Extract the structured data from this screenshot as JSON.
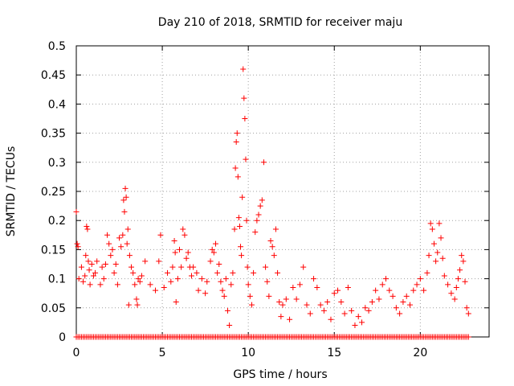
{
  "chart_data": {
    "type": "scatter",
    "title": "Day 210 of 2018, SRMTID for receiver maju",
    "xlabel": "GPS time / hours",
    "ylabel": "SRMTID / TECUs",
    "xlim": [
      0,
      24
    ],
    "ylim": [
      0,
      0.5
    ],
    "xticks": [
      0,
      5,
      10,
      15,
      20
    ],
    "xtick_labels": [
      "0",
      "5",
      "10",
      "15",
      "20"
    ],
    "yticks": [
      0,
      0.05,
      0.1,
      0.15,
      0.2,
      0.25,
      0.3,
      0.35,
      0.4,
      0.45,
      0.5
    ],
    "ytick_labels": [
      "0",
      "0.05",
      "0.1",
      "0.15",
      "0.2",
      "0.25",
      "0.3",
      "0.35",
      "0.4",
      "0.45",
      "0.5"
    ],
    "grid": true,
    "marker": "+",
    "color": "#ff0000",
    "series": [
      {
        "name": "SRMTID",
        "points": [
          [
            0.0,
            0.215
          ],
          [
            0.05,
            0.16
          ],
          [
            0.1,
            0.155
          ],
          [
            0.15,
            0.1
          ],
          [
            0.3,
            0.12
          ],
          [
            0.4,
            0.095
          ],
          [
            0.5,
            0.105
          ],
          [
            0.55,
            0.14
          ],
          [
            0.6,
            0.19
          ],
          [
            0.65,
            0.185
          ],
          [
            0.7,
            0.13
          ],
          [
            0.75,
            0.115
          ],
          [
            0.8,
            0.09
          ],
          [
            0.9,
            0.125
          ],
          [
            1.0,
            0.105
          ],
          [
            1.1,
            0.11
          ],
          [
            1.2,
            0.13
          ],
          [
            1.4,
            0.09
          ],
          [
            1.5,
            0.12
          ],
          [
            1.6,
            0.1
          ],
          [
            1.7,
            0.125
          ],
          [
            1.8,
            0.175
          ],
          [
            1.9,
            0.16
          ],
          [
            2.0,
            0.14
          ],
          [
            2.1,
            0.15
          ],
          [
            2.2,
            0.11
          ],
          [
            2.3,
            0.125
          ],
          [
            2.4,
            0.09
          ],
          [
            2.5,
            0.17
          ],
          [
            2.6,
            0.155
          ],
          [
            2.7,
            0.175
          ],
          [
            2.75,
            0.235
          ],
          [
            2.8,
            0.215
          ],
          [
            2.85,
            0.255
          ],
          [
            2.9,
            0.24
          ],
          [
            2.95,
            0.16
          ],
          [
            3.0,
            0.185
          ],
          [
            3.05,
            0.055
          ],
          [
            3.1,
            0.14
          ],
          [
            3.2,
            0.12
          ],
          [
            3.3,
            0.11
          ],
          [
            3.4,
            0.09
          ],
          [
            3.5,
            0.065
          ],
          [
            3.55,
            0.055
          ],
          [
            3.6,
            0.1
          ],
          [
            3.7,
            0.095
          ],
          [
            3.8,
            0.105
          ],
          [
            4.0,
            0.13
          ],
          [
            4.3,
            0.09
          ],
          [
            4.6,
            0.08
          ],
          [
            4.8,
            0.13
          ],
          [
            4.9,
            0.175
          ],
          [
            5.1,
            0.085
          ],
          [
            5.3,
            0.11
          ],
          [
            5.5,
            0.095
          ],
          [
            5.6,
            0.12
          ],
          [
            5.7,
            0.165
          ],
          [
            5.75,
            0.145
          ],
          [
            5.8,
            0.06
          ],
          [
            5.9,
            0.1
          ],
          [
            6.0,
            0.15
          ],
          [
            6.1,
            0.12
          ],
          [
            6.2,
            0.185
          ],
          [
            6.3,
            0.175
          ],
          [
            6.4,
            0.135
          ],
          [
            6.5,
            0.145
          ],
          [
            6.6,
            0.12
          ],
          [
            6.7,
            0.105
          ],
          [
            6.8,
            0.12
          ],
          [
            7.0,
            0.11
          ],
          [
            7.1,
            0.08
          ],
          [
            7.3,
            0.1
          ],
          [
            7.5,
            0.075
          ],
          [
            7.6,
            0.095
          ],
          [
            7.8,
            0.13
          ],
          [
            7.9,
            0.15
          ],
          [
            8.0,
            0.145
          ],
          [
            8.1,
            0.16
          ],
          [
            8.2,
            0.11
          ],
          [
            8.3,
            0.125
          ],
          [
            8.4,
            0.095
          ],
          [
            8.5,
            0.08
          ],
          [
            8.6,
            0.07
          ],
          [
            8.7,
            0.1
          ],
          [
            8.8,
            0.045
          ],
          [
            8.9,
            0.02
          ],
          [
            9.0,
            0.09
          ],
          [
            9.1,
            0.11
          ],
          [
            9.2,
            0.185
          ],
          [
            9.25,
            0.29
          ],
          [
            9.3,
            0.335
          ],
          [
            9.35,
            0.35
          ],
          [
            9.4,
            0.275
          ],
          [
            9.45,
            0.205
          ],
          [
            9.5,
            0.19
          ],
          [
            9.55,
            0.155
          ],
          [
            9.6,
            0.14
          ],
          [
            9.65,
            0.24
          ],
          [
            9.7,
            0.46
          ],
          [
            9.75,
            0.41
          ],
          [
            9.8,
            0.375
          ],
          [
            9.85,
            0.305
          ],
          [
            9.9,
            0.2
          ],
          [
            9.95,
            0.12
          ],
          [
            10.0,
            0.09
          ],
          [
            10.1,
            0.07
          ],
          [
            10.2,
            0.055
          ],
          [
            10.3,
            0.11
          ],
          [
            10.4,
            0.18
          ],
          [
            10.5,
            0.2
          ],
          [
            10.6,
            0.21
          ],
          [
            10.7,
            0.225
          ],
          [
            10.8,
            0.235
          ],
          [
            10.9,
            0.3
          ],
          [
            11.0,
            0.12
          ],
          [
            11.1,
            0.095
          ],
          [
            11.2,
            0.07
          ],
          [
            11.3,
            0.165
          ],
          [
            11.4,
            0.155
          ],
          [
            11.5,
            0.14
          ],
          [
            11.6,
            0.185
          ],
          [
            11.7,
            0.11
          ],
          [
            11.8,
            0.06
          ],
          [
            11.9,
            0.035
          ],
          [
            12.0,
            0.055
          ],
          [
            12.2,
            0.065
          ],
          [
            12.4,
            0.03
          ],
          [
            12.6,
            0.085
          ],
          [
            12.8,
            0.065
          ],
          [
            13.0,
            0.09
          ],
          [
            13.2,
            0.12
          ],
          [
            13.4,
            0.055
          ],
          [
            13.6,
            0.04
          ],
          [
            13.8,
            0.1
          ],
          [
            14.0,
            0.085
          ],
          [
            14.2,
            0.055
          ],
          [
            14.4,
            0.045
          ],
          [
            14.6,
            0.06
          ],
          [
            14.8,
            0.03
          ],
          [
            15.0,
            0.075
          ],
          [
            15.2,
            0.08
          ],
          [
            15.4,
            0.06
          ],
          [
            15.6,
            0.04
          ],
          [
            15.8,
            0.085
          ],
          [
            16.0,
            0.045
          ],
          [
            16.2,
            0.02
          ],
          [
            16.4,
            0.035
          ],
          [
            16.6,
            0.025
          ],
          [
            16.8,
            0.05
          ],
          [
            17.0,
            0.045
          ],
          [
            17.2,
            0.06
          ],
          [
            17.4,
            0.08
          ],
          [
            17.6,
            0.065
          ],
          [
            17.8,
            0.09
          ],
          [
            18.0,
            0.1
          ],
          [
            18.2,
            0.08
          ],
          [
            18.4,
            0.07
          ],
          [
            18.6,
            0.05
          ],
          [
            18.8,
            0.04
          ],
          [
            19.0,
            0.06
          ],
          [
            19.2,
            0.07
          ],
          [
            19.4,
            0.055
          ],
          [
            19.6,
            0.08
          ],
          [
            19.8,
            0.09
          ],
          [
            20.0,
            0.1
          ],
          [
            20.2,
            0.08
          ],
          [
            20.4,
            0.11
          ],
          [
            20.5,
            0.14
          ],
          [
            20.6,
            0.195
          ],
          [
            20.7,
            0.185
          ],
          [
            20.8,
            0.16
          ],
          [
            20.9,
            0.13
          ],
          [
            21.0,
            0.145
          ],
          [
            21.1,
            0.195
          ],
          [
            21.2,
            0.17
          ],
          [
            21.3,
            0.135
          ],
          [
            21.4,
            0.105
          ],
          [
            21.6,
            0.09
          ],
          [
            21.8,
            0.075
          ],
          [
            22.0,
            0.065
          ],
          [
            22.1,
            0.085
          ],
          [
            22.2,
            0.1
          ],
          [
            22.3,
            0.115
          ],
          [
            22.4,
            0.14
          ],
          [
            22.5,
            0.13
          ],
          [
            22.6,
            0.095
          ],
          [
            22.7,
            0.05
          ],
          [
            22.8,
            0.04
          ]
        ]
      },
      {
        "name": "SRMTID zero-value samples",
        "x_range": [
          0.0,
          22.8
        ],
        "step": 0.1,
        "y": 0.0
      }
    ]
  }
}
